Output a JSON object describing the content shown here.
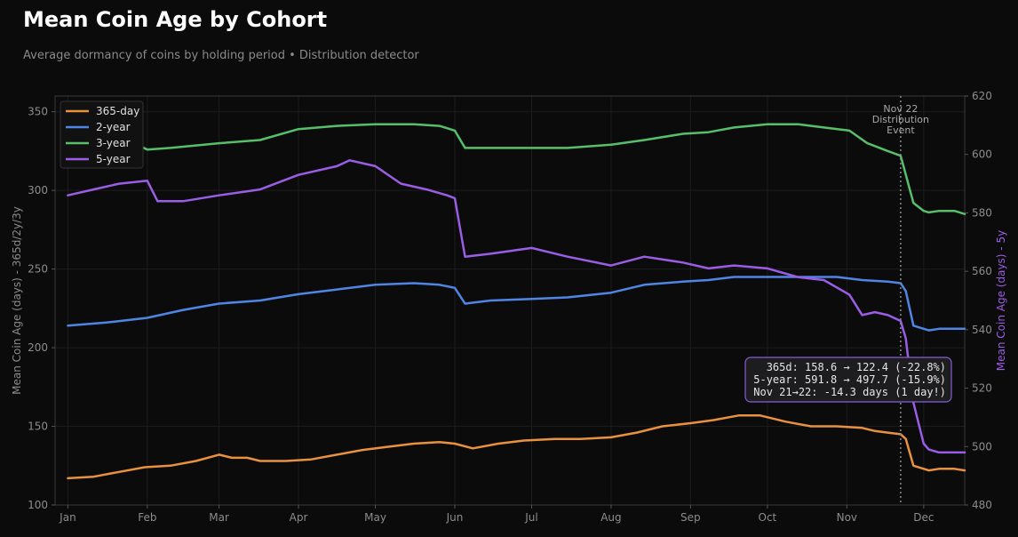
{
  "chart_data": {
    "type": "line",
    "title": "Mean Coin Age by Cohort",
    "subtitle": "Average dormancy of coins by holding period • Distribution detector",
    "ylabel_left": "Mean Coin Age (days) - 365d/2y/3y",
    "ylabel_right": "Mean Coin Age (days) - 5y",
    "ylim_left": [
      100,
      360
    ],
    "ylim_right": [
      480,
      620
    ],
    "yticks_left": [
      "100",
      "150",
      "200",
      "250",
      "300",
      "350"
    ],
    "yticks_right": [
      "480",
      "500",
      "520",
      "540",
      "560",
      "580",
      "600",
      "620"
    ],
    "xlabels": [
      "Jan",
      "Feb",
      "Mar",
      "Apr",
      "May",
      "Jun",
      "Jul",
      "Aug",
      "Sep",
      "Oct",
      "Nov",
      "Dec"
    ],
    "month_start_day": [
      0,
      31,
      59,
      90,
      120,
      151,
      181,
      212,
      243,
      273,
      304,
      334
    ],
    "xlim": [
      -5,
      350
    ],
    "legend_position": "top-left",
    "grid": true,
    "colors": {
      "s365": "#e8913f",
      "s2y": "#4f86e3",
      "s3y": "#57bf6a",
      "s5y": "#9b5de5"
    },
    "series": [
      {
        "name": "365-day",
        "axis": "left",
        "color": "#e8913f",
        "points": [
          [
            0,
            117
          ],
          [
            10,
            118
          ],
          [
            20,
            121
          ],
          [
            30,
            124
          ],
          [
            40,
            125
          ],
          [
            50,
            128
          ],
          [
            59,
            132
          ],
          [
            64,
            130
          ],
          [
            70,
            130
          ],
          [
            75,
            128
          ],
          [
            85,
            128
          ],
          [
            95,
            129
          ],
          [
            105,
            132
          ],
          [
            115,
            135
          ],
          [
            125,
            137
          ],
          [
            135,
            139
          ],
          [
            145,
            140
          ],
          [
            151,
            139
          ],
          [
            158,
            136
          ],
          [
            168,
            139
          ],
          [
            178,
            141
          ],
          [
            190,
            142
          ],
          [
            200,
            142
          ],
          [
            212,
            143
          ],
          [
            222,
            146
          ],
          [
            232,
            150
          ],
          [
            243,
            152
          ],
          [
            252,
            154
          ],
          [
            262,
            157
          ],
          [
            270,
            157
          ],
          [
            280,
            153
          ],
          [
            290,
            150
          ],
          [
            300,
            150
          ],
          [
            310,
            149
          ],
          [
            315,
            147
          ],
          [
            320,
            146
          ],
          [
            325,
            145
          ],
          [
            327,
            142
          ],
          [
            330,
            125
          ],
          [
            334,
            123
          ],
          [
            336,
            122
          ],
          [
            340,
            123
          ],
          [
            346,
            123
          ],
          [
            350,
            122
          ]
        ]
      },
      {
        "name": "2-year",
        "axis": "left",
        "color": "#4f86e3",
        "points": [
          [
            0,
            214
          ],
          [
            15,
            216
          ],
          [
            31,
            219
          ],
          [
            45,
            224
          ],
          [
            59,
            228
          ],
          [
            75,
            230
          ],
          [
            90,
            234
          ],
          [
            105,
            237
          ],
          [
            120,
            240
          ],
          [
            135,
            241
          ],
          [
            145,
            240
          ],
          [
            151,
            238
          ],
          [
            155,
            228
          ],
          [
            165,
            230
          ],
          [
            181,
            231
          ],
          [
            195,
            232
          ],
          [
            212,
            235
          ],
          [
            225,
            240
          ],
          [
            240,
            242
          ],
          [
            250,
            243
          ],
          [
            260,
            245
          ],
          [
            273,
            245
          ],
          [
            285,
            245
          ],
          [
            300,
            245
          ],
          [
            310,
            243
          ],
          [
            320,
            242
          ],
          [
            325,
            241
          ],
          [
            327,
            236
          ],
          [
            330,
            214
          ],
          [
            334,
            212
          ],
          [
            336,
            211
          ],
          [
            340,
            212
          ],
          [
            346,
            212
          ],
          [
            350,
            212
          ]
        ]
      },
      {
        "name": "3-year",
        "axis": "left",
        "color": "#57bf6a",
        "points": [
          [
            0,
            333
          ],
          [
            10,
            332
          ],
          [
            20,
            334
          ],
          [
            31,
            326
          ],
          [
            40,
            327
          ],
          [
            59,
            330
          ],
          [
            75,
            332
          ],
          [
            90,
            339
          ],
          [
            105,
            341
          ],
          [
            120,
            342
          ],
          [
            135,
            342
          ],
          [
            145,
            341
          ],
          [
            151,
            338
          ],
          [
            155,
            327
          ],
          [
            165,
            327
          ],
          [
            181,
            327
          ],
          [
            195,
            327
          ],
          [
            212,
            329
          ],
          [
            225,
            332
          ],
          [
            240,
            336
          ],
          [
            250,
            337
          ],
          [
            260,
            340
          ],
          [
            273,
            342
          ],
          [
            285,
            342
          ],
          [
            295,
            340
          ],
          [
            305,
            338
          ],
          [
            312,
            330
          ],
          [
            320,
            325
          ],
          [
            325,
            322
          ],
          [
            327,
            310
          ],
          [
            330,
            292
          ],
          [
            334,
            287
          ],
          [
            336,
            286
          ],
          [
            340,
            287
          ],
          [
            346,
            287
          ],
          [
            350,
            285
          ]
        ]
      },
      {
        "name": "5-year",
        "axis": "right",
        "color": "#9b5de5",
        "points": [
          [
            0,
            586
          ],
          [
            10,
            588
          ],
          [
            20,
            590
          ],
          [
            31,
            591
          ],
          [
            35,
            584
          ],
          [
            45,
            584
          ],
          [
            59,
            586
          ],
          [
            75,
            588
          ],
          [
            90,
            593
          ],
          [
            105,
            596
          ],
          [
            110,
            598
          ],
          [
            120,
            596
          ],
          [
            130,
            590
          ],
          [
            140,
            588
          ],
          [
            148,
            586
          ],
          [
            151,
            585
          ],
          [
            155,
            565
          ],
          [
            165,
            566
          ],
          [
            181,
            568
          ],
          [
            195,
            565
          ],
          [
            212,
            562
          ],
          [
            225,
            565
          ],
          [
            240,
            563
          ],
          [
            250,
            561
          ],
          [
            260,
            562
          ],
          [
            273,
            561
          ],
          [
            285,
            558
          ],
          [
            295,
            557
          ],
          [
            305,
            552
          ],
          [
            310,
            545
          ],
          [
            315,
            546
          ],
          [
            320,
            545
          ],
          [
            325,
            543
          ],
          [
            327,
            537
          ],
          [
            330,
            515
          ],
          [
            334,
            501
          ],
          [
            336,
            499
          ],
          [
            340,
            498
          ],
          [
            346,
            498
          ],
          [
            350,
            498
          ]
        ]
      }
    ],
    "annotation": {
      "day": 325,
      "label_lines": [
        "Nov 22",
        "Distribution",
        "Event"
      ]
    },
    "infobox": {
      "lines": [
        "365d: 158.6 → 122.4 (-22.8%)",
        "5-year: 591.8 → 497.7 (-15.9%)",
        "Nov 21→22: -14.3 days (1 day!)"
      ],
      "border_color": "#8a5cd6"
    }
  }
}
